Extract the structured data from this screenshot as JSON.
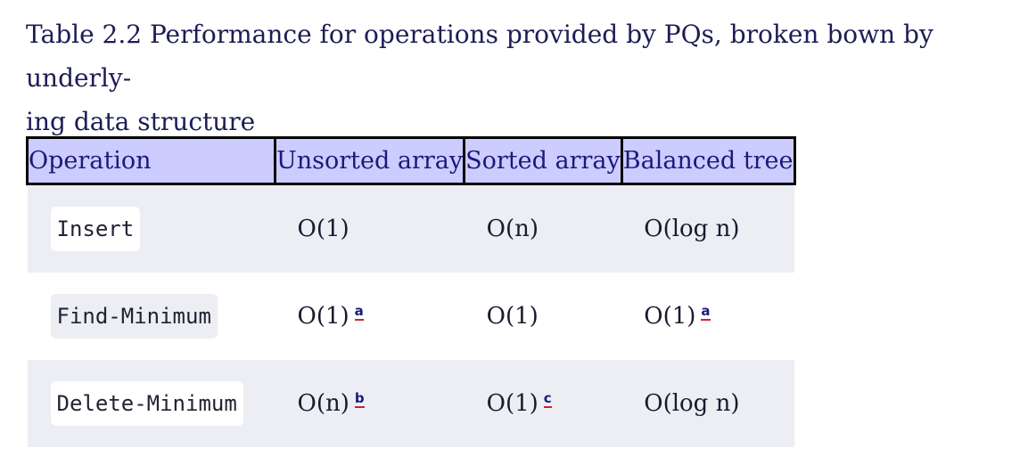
{
  "caption": "Table 2.2 Performance for operations provided by PQs, broken bown by underly-ing data structure",
  "caption_line1": "Table 2.2 Performance for operations provided by PQs, broken bown by underly-",
  "caption_line2": "ing data structure",
  "table": {
    "headers": [
      "Operation",
      "Unsorted array",
      "Sorted array",
      "Balanced tree"
    ],
    "rows": [
      {
        "operation": "Insert",
        "unsorted": "O(1)",
        "unsorted_note": "",
        "sorted": "O(n)",
        "sorted_note": "",
        "balanced": "O(log n)",
        "balanced_note": ""
      },
      {
        "operation": "Find-Minimum",
        "unsorted": "O(1)",
        "unsorted_note": "a",
        "sorted": "O(1)",
        "sorted_note": "",
        "balanced": "O(1)",
        "balanced_note": "a"
      },
      {
        "operation": "Delete-Minimum",
        "unsorted": "O(n)",
        "unsorted_note": "b",
        "sorted": "O(1)",
        "sorted_note": "c",
        "balanced": "O(log n)",
        "balanced_note": ""
      }
    ]
  },
  "colors": {
    "header_bg": "#ccccff",
    "stripe_bg": "#eceef4",
    "footnote_underline": "#cc2233"
  }
}
